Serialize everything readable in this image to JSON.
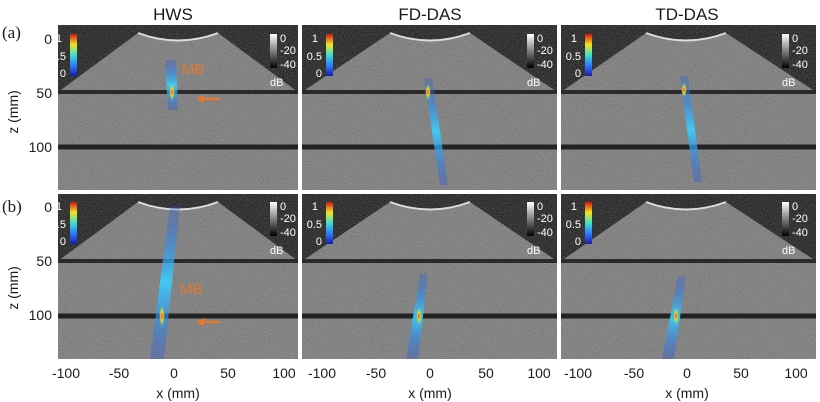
{
  "panel_labels": [
    "(a)",
    "(b)"
  ],
  "column_titles": [
    "HWS",
    "FD-DAS",
    "TD-DAS"
  ],
  "y_axis": {
    "label": "z (mm)",
    "ticks": [
      "0",
      "50",
      "100"
    ]
  },
  "x_axis": {
    "label": "x (mm)",
    "ticks": [
      "-100",
      "-50",
      "0",
      "50",
      "100"
    ]
  },
  "color_bar": {
    "ticks": [
      "1",
      "0.5",
      "0"
    ]
  },
  "gray_bar": {
    "ticks": [
      "0",
      "-20",
      "-40"
    ],
    "unit": "dB"
  },
  "annotation": "MB",
  "colors": {
    "annotation": "#e8782c",
    "background": "#ffffff",
    "image": "#0c0c0c"
  }
}
